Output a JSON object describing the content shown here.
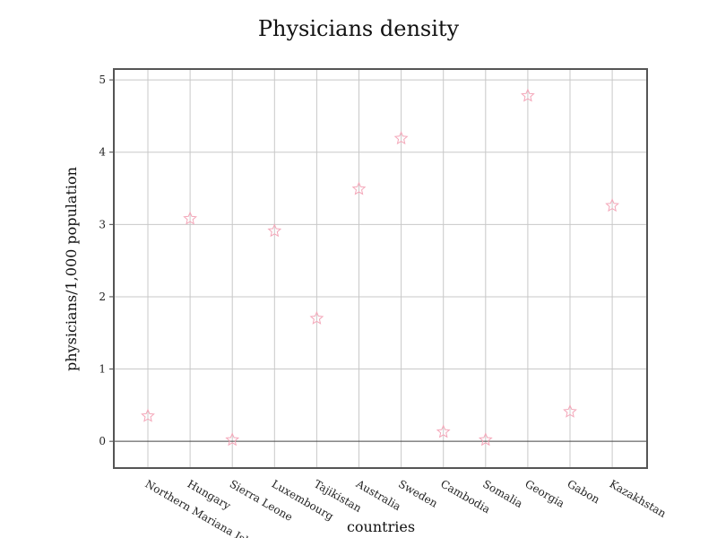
{
  "chart_data": {
    "type": "scatter",
    "title": "Physicians density",
    "xlabel": "countries",
    "ylabel": "physicians/1,000 population",
    "categories": [
      "Northern Mariana Islands",
      "Hungary",
      "Sierra Leone",
      "Luxembourg",
      "Tajikistan",
      "Australia",
      "Sweden",
      "Cambodia",
      "Somalia",
      "Georgia",
      "Gabon",
      "Kazakhstan"
    ],
    "values": [
      0.35,
      3.08,
      0.02,
      2.91,
      1.7,
      3.49,
      4.19,
      0.13,
      0.02,
      4.78,
      0.41,
      3.26
    ],
    "ylim": [
      -0.37,
      5.15
    ],
    "yticks": [
      0,
      1,
      2,
      3,
      4,
      5
    ],
    "marker": "star-open",
    "marker_color": "#f4a7b9",
    "grid": true
  }
}
